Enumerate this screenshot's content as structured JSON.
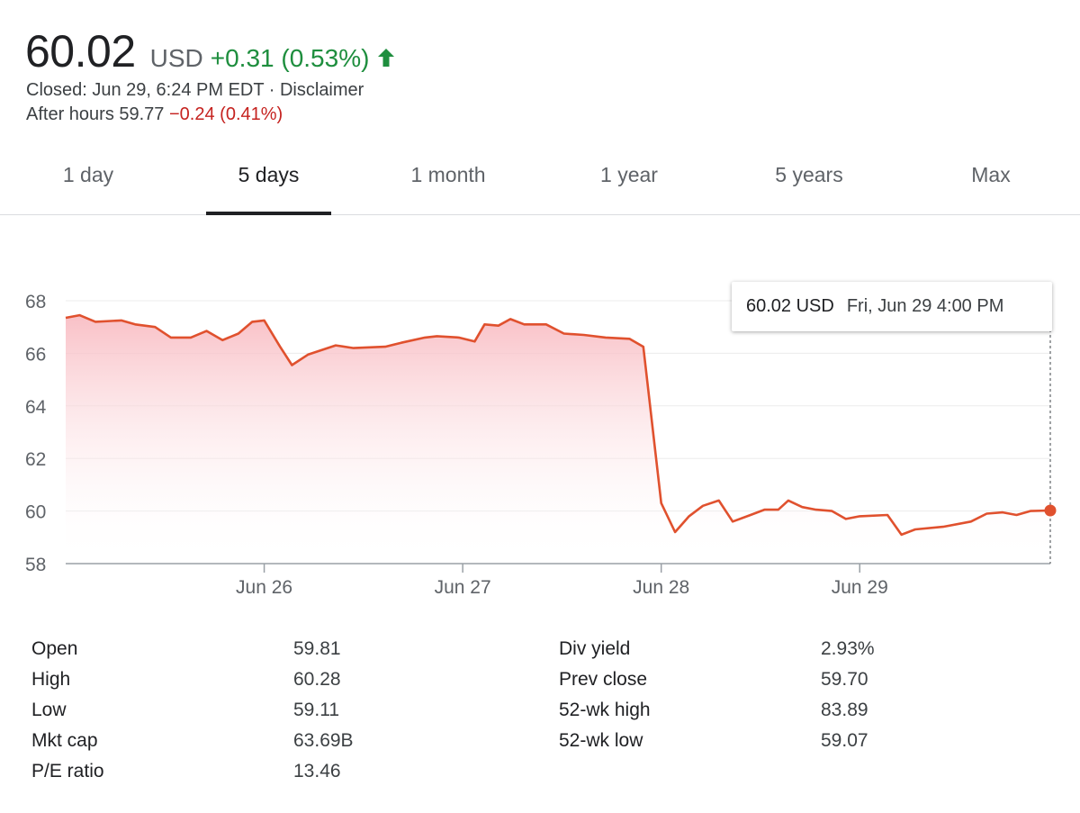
{
  "quote": {
    "price": "60.02",
    "currency": "USD",
    "change": "+0.31 (0.53%)",
    "closed_text": "Closed: Jun 29, 6:24 PM EDT · Disclaimer",
    "after_hours_label": "After hours 59.77",
    "after_hours_change": "−0.24 (0.41%)"
  },
  "tabs": [
    {
      "label": "1 day",
      "active": false
    },
    {
      "label": "5 days",
      "active": true
    },
    {
      "label": "1 month",
      "active": false
    },
    {
      "label": "1 year",
      "active": false
    },
    {
      "label": "5 years",
      "active": false
    },
    {
      "label": "Max",
      "active": false
    }
  ],
  "tooltip": {
    "value": "60.02 USD",
    "date": "Fri, Jun 29 4:00 PM"
  },
  "colors": {
    "line": "#e0512e",
    "positive": "#1e8e3e",
    "negative": "#c5221f",
    "fill_top": "#f8b9c0"
  },
  "chart_data": {
    "type": "area",
    "ylim": [
      58,
      68
    ],
    "y_ticks": [
      "58",
      "60",
      "62",
      "64",
      "66",
      "68"
    ],
    "x_tick_labels": [
      "Jun 26",
      "Jun 27",
      "Jun 28",
      "Jun 29"
    ],
    "x_tick_positions": [
      1,
      2,
      3,
      4
    ],
    "x_domain": [
      0,
      4.96
    ],
    "grid": true,
    "series": [
      {
        "points": [
          [
            0,
            67.35
          ],
          [
            0.07,
            67.45
          ],
          [
            0.15,
            67.2
          ],
          [
            0.28,
            67.25
          ],
          [
            0.35,
            67.1
          ],
          [
            0.45,
            67.0
          ],
          [
            0.53,
            66.6
          ],
          [
            0.63,
            66.6
          ],
          [
            0.71,
            66.85
          ],
          [
            0.79,
            66.5
          ],
          [
            0.87,
            66.75
          ],
          [
            0.94,
            67.2
          ],
          [
            1.0,
            67.25
          ],
          [
            1.08,
            66.25
          ],
          [
            1.14,
            65.55
          ],
          [
            1.22,
            65.95
          ],
          [
            1.36,
            66.3
          ],
          [
            1.45,
            66.2
          ],
          [
            1.61,
            66.25
          ],
          [
            1.69,
            66.4
          ],
          [
            1.81,
            66.6
          ],
          [
            1.87,
            66.65
          ],
          [
            1.98,
            66.6
          ],
          [
            2.06,
            66.45
          ],
          [
            2.11,
            67.1
          ],
          [
            2.18,
            67.05
          ],
          [
            2.24,
            67.3
          ],
          [
            2.31,
            67.1
          ],
          [
            2.42,
            67.1
          ],
          [
            2.51,
            66.75
          ],
          [
            2.61,
            66.7
          ],
          [
            2.72,
            66.6
          ],
          [
            2.84,
            66.55
          ],
          [
            2.91,
            66.25
          ],
          [
            3.0,
            60.3
          ],
          [
            3.07,
            59.2
          ],
          [
            3.14,
            59.8
          ],
          [
            3.21,
            60.2
          ],
          [
            3.29,
            60.4
          ],
          [
            3.36,
            59.6
          ],
          [
            3.45,
            59.85
          ],
          [
            3.52,
            60.05
          ],
          [
            3.59,
            60.05
          ],
          [
            3.64,
            60.4
          ],
          [
            3.71,
            60.15
          ],
          [
            3.78,
            60.05
          ],
          [
            3.86,
            60.0
          ],
          [
            3.93,
            59.7
          ],
          [
            4.0,
            59.8
          ],
          [
            4.14,
            59.85
          ],
          [
            4.21,
            59.1
          ],
          [
            4.28,
            59.3
          ],
          [
            4.42,
            59.4
          ],
          [
            4.56,
            59.6
          ],
          [
            4.64,
            59.9
          ],
          [
            4.72,
            59.95
          ],
          [
            4.79,
            59.85
          ],
          [
            4.86,
            60.0
          ],
          [
            4.96,
            60.02
          ]
        ]
      }
    ]
  },
  "stats_left": [
    {
      "label": "Open",
      "value": "59.81"
    },
    {
      "label": "High",
      "value": "60.28"
    },
    {
      "label": "Low",
      "value": "59.11"
    },
    {
      "label": "Mkt cap",
      "value": "63.69B"
    },
    {
      "label": "P/E ratio",
      "value": "13.46"
    }
  ],
  "stats_right": [
    {
      "label": "Div yield",
      "value": "2.93%"
    },
    {
      "label": "Prev close",
      "value": "59.70"
    },
    {
      "label": "52-wk high",
      "value": "83.89"
    },
    {
      "label": "52-wk low",
      "value": "59.07"
    }
  ]
}
